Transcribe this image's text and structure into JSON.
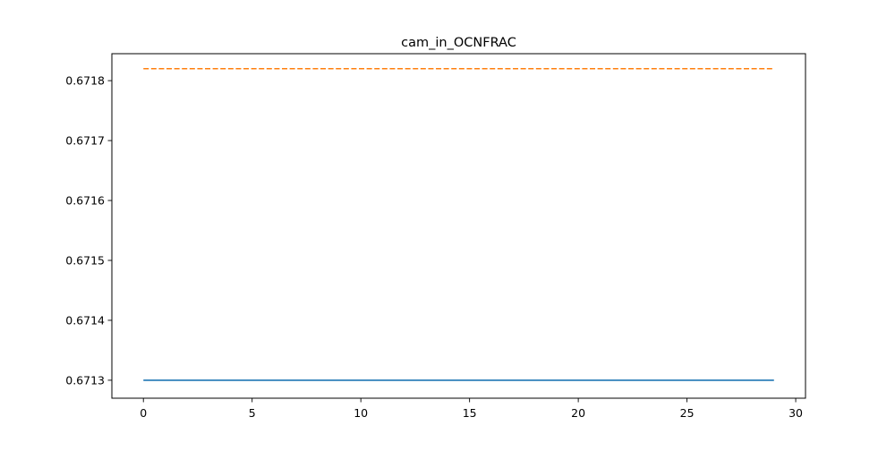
{
  "chart_data": {
    "type": "line",
    "title": "cam_in_OCNFRAC",
    "xlabel": "",
    "ylabel": "",
    "xlim": [
      -1.45,
      30.45
    ],
    "ylim": [
      0.67127,
      0.671845
    ],
    "x_ticks": [
      0,
      5,
      10,
      15,
      20,
      25,
      30
    ],
    "y_ticks": [
      0.6713,
      0.6714,
      0.6715,
      0.6716,
      0.6717,
      0.6718
    ],
    "x_tick_labels": [
      "0",
      "5",
      "10",
      "15",
      "20",
      "25",
      "30"
    ],
    "y_tick_labels": [
      "0.6713",
      "0.6714",
      "0.6715",
      "0.6716",
      "0.6717",
      "0.6718"
    ],
    "grid": false,
    "series": [
      {
        "color": "#1f77b4",
        "style": "solid",
        "x": [
          0,
          29
        ],
        "y": [
          0.6713,
          0.6713
        ]
      },
      {
        "color": "#ff7f0e",
        "style": "dashed",
        "x": [
          0,
          29
        ],
        "y": [
          0.67182,
          0.67182
        ]
      }
    ]
  }
}
